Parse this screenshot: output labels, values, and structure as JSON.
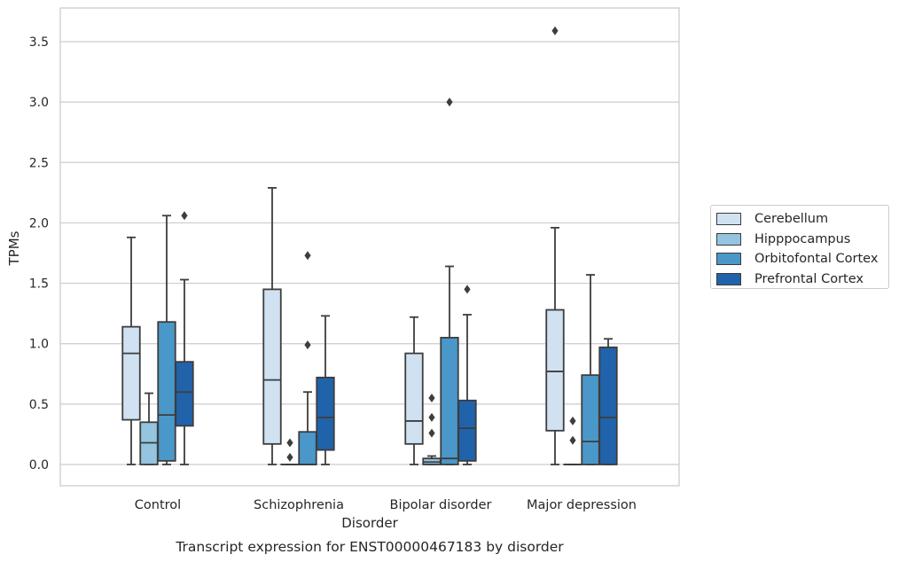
{
  "chart_data": {
    "type": "box",
    "title": "Transcript expression for ENST00000467183 by disorder",
    "xlabel": "Disorder",
    "ylabel": "TPMs",
    "categories": [
      "Control",
      "Schizophrenia",
      "Bipolar disorder",
      "Major depression"
    ],
    "ylim": [
      -0.17,
      3.75
    ],
    "yticks": [
      "0.0",
      "0.5",
      "1.0",
      "1.5",
      "2.0",
      "2.5",
      "3.0",
      "3.5"
    ],
    "grid": "horizontal",
    "legend_placement": "center-right",
    "series": [
      {
        "name": "Cerebellum",
        "color": "#d0e1f2",
        "boxes": [
          {
            "whislo": 0.0,
            "q1": 0.37,
            "med": 0.92,
            "q3": 1.14,
            "whishi": 1.88,
            "fliers": []
          },
          {
            "whislo": 0.0,
            "q1": 0.17,
            "med": 0.7,
            "q3": 1.45,
            "whishi": 2.29,
            "fliers": []
          },
          {
            "whislo": 0.0,
            "q1": 0.17,
            "med": 0.36,
            "q3": 0.92,
            "whishi": 1.22,
            "fliers": []
          },
          {
            "whislo": 0.0,
            "q1": 0.28,
            "med": 0.77,
            "q3": 1.28,
            "whishi": 1.96,
            "fliers": [
              3.59
            ]
          }
        ]
      },
      {
        "name": "Hipppocampus",
        "color": "#94c4df",
        "boxes": [
          {
            "whislo": 0.0,
            "q1": 0.0,
            "med": 0.18,
            "q3": 0.35,
            "whishi": 0.59,
            "fliers": []
          },
          {
            "whislo": 0.0,
            "q1": 0.0,
            "med": 0.0,
            "q3": 0.0,
            "whishi": 0.0,
            "fliers": [
              0.06,
              0.18
            ]
          },
          {
            "whislo": 0.0,
            "q1": 0.0,
            "med": 0.02,
            "q3": 0.05,
            "whishi": 0.07,
            "fliers": [
              0.26,
              0.39,
              0.55
            ]
          },
          {
            "whislo": 0.0,
            "q1": 0.0,
            "med": 0.0,
            "q3": 0.0,
            "whishi": 0.0,
            "fliers": [
              0.2,
              0.36
            ]
          }
        ]
      },
      {
        "name": "Orbitofontal Cortex",
        "color": "#4a98c9",
        "boxes": [
          {
            "whislo": 0.0,
            "q1": 0.03,
            "med": 0.41,
            "q3": 1.18,
            "whishi": 2.06,
            "fliers": []
          },
          {
            "whislo": 0.0,
            "q1": 0.0,
            "med": 0.0,
            "q3": 0.27,
            "whishi": 0.6,
            "fliers": [
              0.99,
              1.73
            ]
          },
          {
            "whislo": 0.0,
            "q1": 0.0,
            "med": 0.05,
            "q3": 1.05,
            "whishi": 1.64,
            "fliers": [
              3.0
            ]
          },
          {
            "whislo": 0.0,
            "q1": 0.0,
            "med": 0.19,
            "q3": 0.74,
            "whishi": 1.57,
            "fliers": []
          }
        ]
      },
      {
        "name": "Prefrontal Cortex",
        "color": "#2163aa",
        "boxes": [
          {
            "whislo": 0.0,
            "q1": 0.32,
            "med": 0.6,
            "q3": 0.85,
            "whishi": 1.53,
            "fliers": [
              2.06
            ]
          },
          {
            "whislo": 0.0,
            "q1": 0.12,
            "med": 0.39,
            "q3": 0.72,
            "whishi": 1.23,
            "fliers": []
          },
          {
            "whislo": 0.0,
            "q1": 0.03,
            "med": 0.3,
            "q3": 0.53,
            "whishi": 1.24,
            "fliers": [
              1.45
            ]
          },
          {
            "whislo": 0.0,
            "q1": 0.0,
            "med": 0.39,
            "q3": 0.97,
            "whishi": 1.04,
            "fliers": []
          }
        ]
      }
    ]
  }
}
